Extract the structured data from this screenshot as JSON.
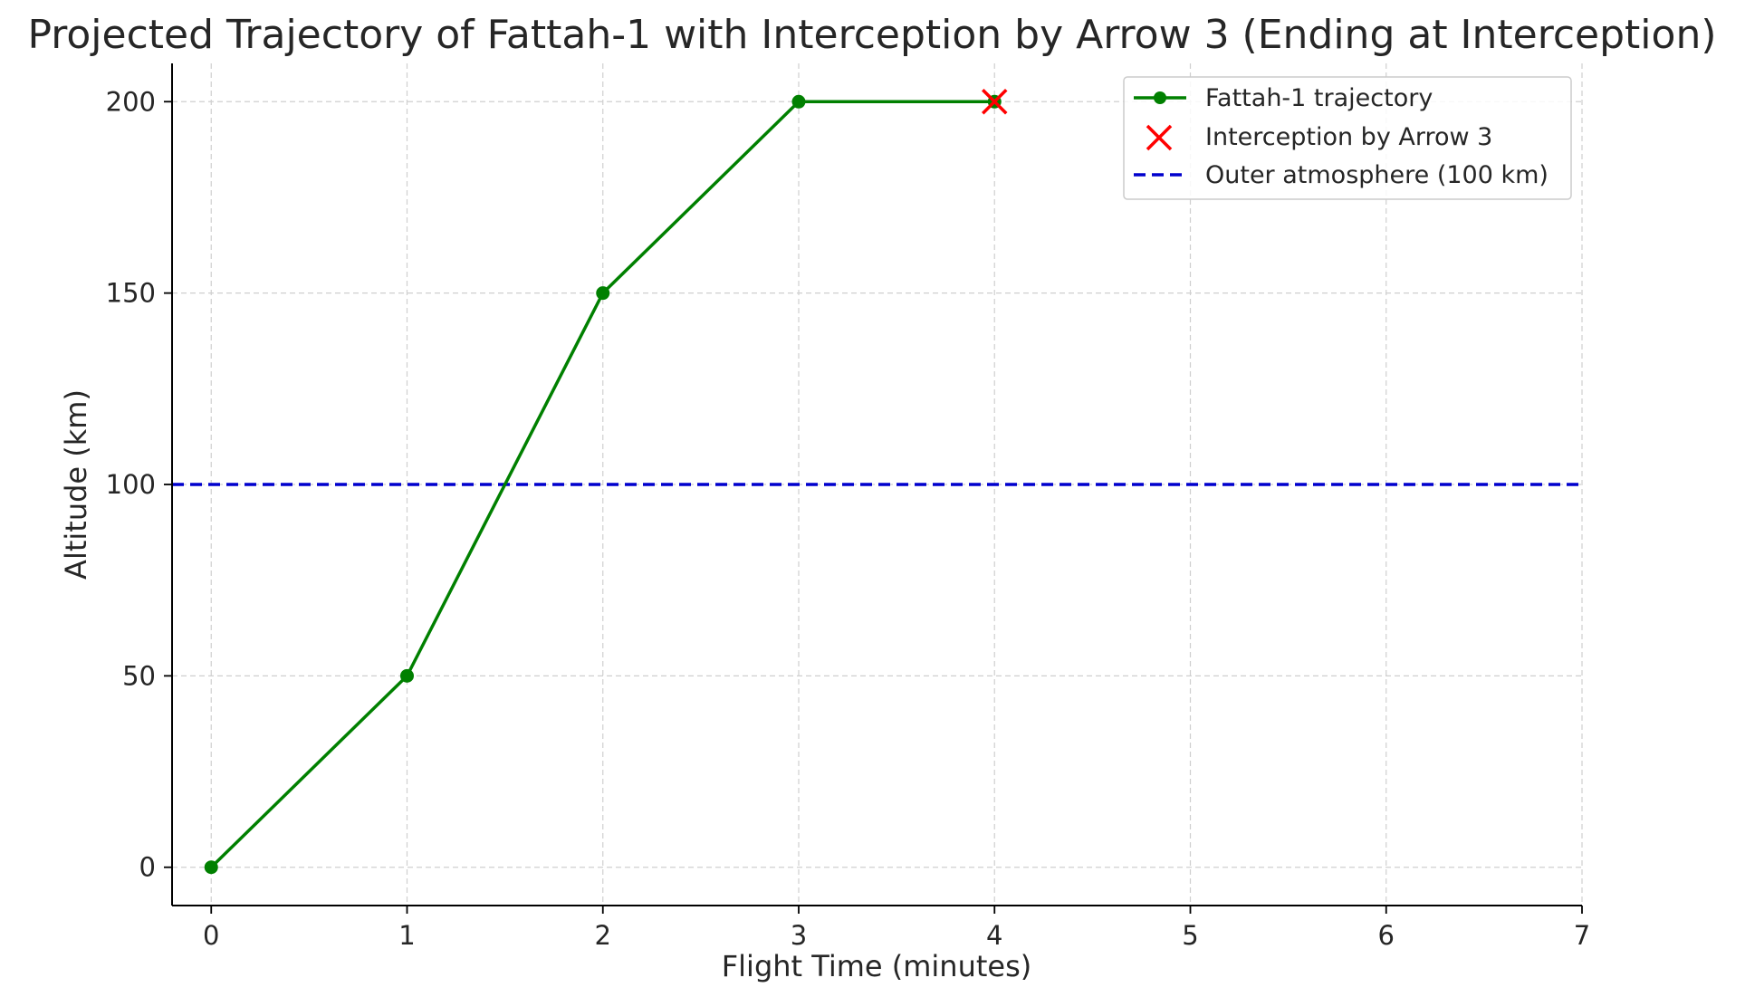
{
  "chart_data": {
    "type": "line",
    "title": "Projected Trajectory of Fattah-1 with Interception by Arrow 3 (Ending at Interception)",
    "xlabel": "Flight Time (minutes)",
    "ylabel": "Altitude (km)",
    "xlim": [
      -0.2,
      7
    ],
    "ylim": [
      -10,
      210
    ],
    "x_ticks": [
      0,
      1,
      2,
      3,
      4,
      5,
      6,
      7
    ],
    "y_ticks": [
      0,
      50,
      100,
      150,
      200
    ],
    "grid": true,
    "legend_position": "top-right",
    "series": [
      {
        "name": "Fattah-1 trajectory",
        "kind": "line-marker",
        "color": "#008000",
        "x": [
          0,
          1,
          2,
          3,
          4
        ],
        "y": [
          0,
          50,
          150,
          200,
          200
        ]
      },
      {
        "name": "Interception by Arrow 3",
        "kind": "scatter-x",
        "color": "#ff0000",
        "x": [
          4
        ],
        "y": [
          200
        ]
      },
      {
        "name": "Outer atmosphere (100 km)",
        "kind": "hline-dashed",
        "color": "#0000cd",
        "y": 100
      }
    ]
  }
}
